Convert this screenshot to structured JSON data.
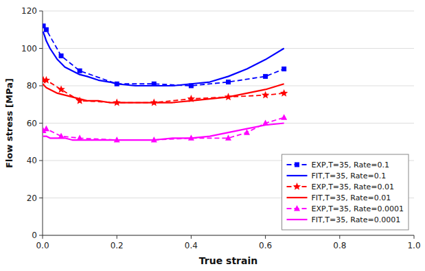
{
  "chart_data": {
    "type": "line",
    "xlabel": "True strain",
    "ylabel": "Flow stress [MPa]",
    "xlim": [
      0.0,
      1.0
    ],
    "ylim": [
      0,
      120
    ],
    "xticks": [
      {
        "value": 0.0,
        "label": "0.0"
      },
      0.2,
      0.4,
      0.6,
      0.8,
      {
        "value": 1.0,
        "label": "1.0"
      }
    ],
    "yticks": [
      0,
      20,
      40,
      60,
      80,
      100,
      120
    ],
    "grid": true,
    "legend": "lower right",
    "series": [
      {
        "name": "EXP,T=35, Rate=0.1",
        "color": "#0000FF",
        "marker": "square",
        "line_style": "dashed",
        "x": [
          0.002,
          0.01,
          0.05,
          0.1,
          0.2,
          0.3,
          0.4,
          0.5,
          0.6,
          0.65
        ],
        "values": [
          112,
          110,
          96,
          88,
          81,
          81,
          80,
          82,
          85,
          89
        ]
      },
      {
        "name": "FIT,T=35, Rate=0.1",
        "color": "#0000FF",
        "line_style": "solid",
        "x": [
          0.001,
          0.005,
          0.01,
          0.02,
          0.04,
          0.06,
          0.08,
          0.1,
          0.12,
          0.15,
          0.18,
          0.2,
          0.25,
          0.3,
          0.35,
          0.4,
          0.45,
          0.5,
          0.55,
          0.6,
          0.65
        ],
        "values": [
          109,
          107,
          104,
          100,
          94,
          90,
          88,
          86,
          85,
          83,
          82,
          81,
          80,
          80,
          80,
          81,
          82,
          85,
          89,
          94,
          100
        ]
      },
      {
        "name": "EXP,T=35, Rate=0.01",
        "color": "#FF0000",
        "marker": "star",
        "line_style": "dashed",
        "x": [
          0.002,
          0.01,
          0.05,
          0.1,
          0.2,
          0.3,
          0.4,
          0.5,
          0.6,
          0.65
        ],
        "values": [
          83,
          83,
          78,
          72,
          71,
          71,
          73,
          74,
          75,
          76
        ]
      },
      {
        "name": "FIT,T=35, Rate=0.01",
        "color": "#FF0000",
        "line_style": "solid",
        "x": [
          0.001,
          0.005,
          0.01,
          0.02,
          0.04,
          0.06,
          0.08,
          0.1,
          0.12,
          0.15,
          0.18,
          0.2,
          0.25,
          0.3,
          0.35,
          0.4,
          0.45,
          0.5,
          0.55,
          0.6,
          0.65
        ],
        "values": [
          81,
          80,
          79,
          78,
          76,
          75,
          74,
          73,
          72,
          72,
          71,
          71,
          71,
          71,
          71,
          72,
          73,
          74,
          76,
          78,
          81
        ]
      },
      {
        "name": "EXP,T=35, Rate=0.0001",
        "color": "#FF00FF",
        "marker": "triangle",
        "line_style": "dashed",
        "x": [
          0.002,
          0.01,
          0.05,
          0.1,
          0.2,
          0.3,
          0.4,
          0.5,
          0.55,
          0.6,
          0.65
        ],
        "values": [
          56,
          57,
          53,
          52,
          51,
          51,
          52,
          52,
          55,
          60,
          63
        ]
      },
      {
        "name": "FIT,T=35, Rate=0.0001",
        "color": "#FF00FF",
        "line_style": "solid",
        "x": [
          0.001,
          0.005,
          0.01,
          0.02,
          0.04,
          0.06,
          0.08,
          0.1,
          0.12,
          0.15,
          0.18,
          0.2,
          0.25,
          0.3,
          0.35,
          0.4,
          0.45,
          0.5,
          0.55,
          0.6,
          0.65
        ],
        "values": [
          53,
          53,
          53,
          52,
          52,
          52,
          51,
          51,
          51,
          51,
          51,
          51,
          51,
          51,
          52,
          52,
          53,
          55,
          57,
          59,
          60
        ]
      }
    ]
  }
}
